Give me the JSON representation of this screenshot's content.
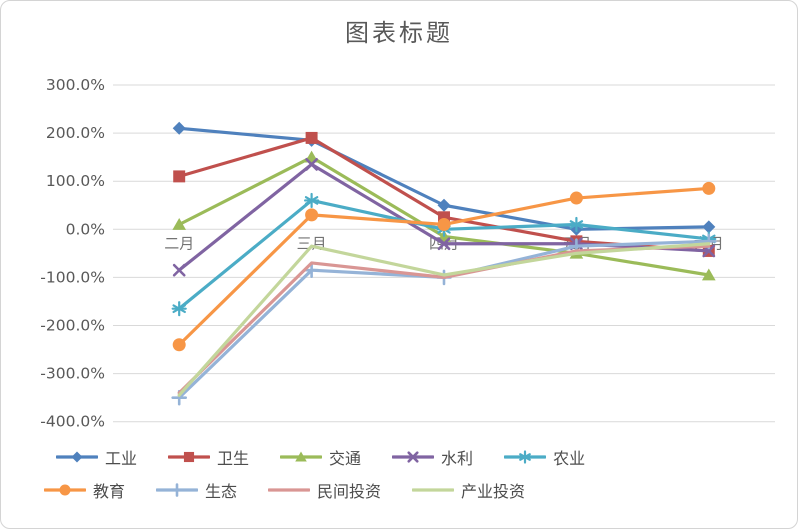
{
  "chart_data": {
    "type": "line",
    "title": "图表标题",
    "categories": [
      "二月",
      "三月",
      "四月",
      "五月",
      "六月"
    ],
    "y_axis": {
      "min": -400,
      "max": 300,
      "step": 100,
      "unit": "percent",
      "labels": [
        "300.0%",
        "200.0%",
        "100.0%",
        "0.0%",
        "-100.0%",
        "-200.0%",
        "-300.0%",
        "-400.0%"
      ]
    },
    "grid": true,
    "legend_position": "bottom",
    "series": [
      {
        "name": "工业",
        "color": "#4F81BD",
        "marker": "diamond",
        "values": [
          210,
          185,
          50,
          0,
          5
        ]
      },
      {
        "name": "卫生",
        "color": "#C0504D",
        "marker": "square",
        "values": [
          110,
          190,
          25,
          -25,
          -45
        ]
      },
      {
        "name": "交通",
        "color": "#9BBB59",
        "marker": "triangle",
        "values": [
          10,
          150,
          -15,
          -50,
          -95
        ]
      },
      {
        "name": "水利",
        "color": "#8064A2",
        "marker": "x",
        "values": [
          -85,
          135,
          -30,
          -30,
          -45
        ]
      },
      {
        "name": "农业",
        "color": "#4BACC6",
        "marker": "asterisk",
        "values": [
          -165,
          60,
          0,
          10,
          -20
        ]
      },
      {
        "name": "教育",
        "color": "#F79646",
        "marker": "circle",
        "values": [
          -240,
          30,
          10,
          65,
          85
        ]
      },
      {
        "name": "生态",
        "color": "#95B3D7",
        "marker": "plus",
        "values": [
          -350,
          -85,
          -100,
          -35,
          -25
        ]
      },
      {
        "name": "民间投资",
        "color": "#D99694",
        "marker": "none",
        "values": [
          -340,
          -70,
          -100,
          -45,
          -35
        ]
      },
      {
        "name": "产业投资",
        "color": "#C3D69B",
        "marker": "none",
        "values": [
          -345,
          -35,
          -95,
          -50,
          -30
        ]
      }
    ]
  },
  "colors": {
    "grid": "#D9D9D9",
    "axis_text": "#595959",
    "title_text": "#595959",
    "frame_border": "#D4D4D4",
    "background": "#FFFFFF"
  }
}
